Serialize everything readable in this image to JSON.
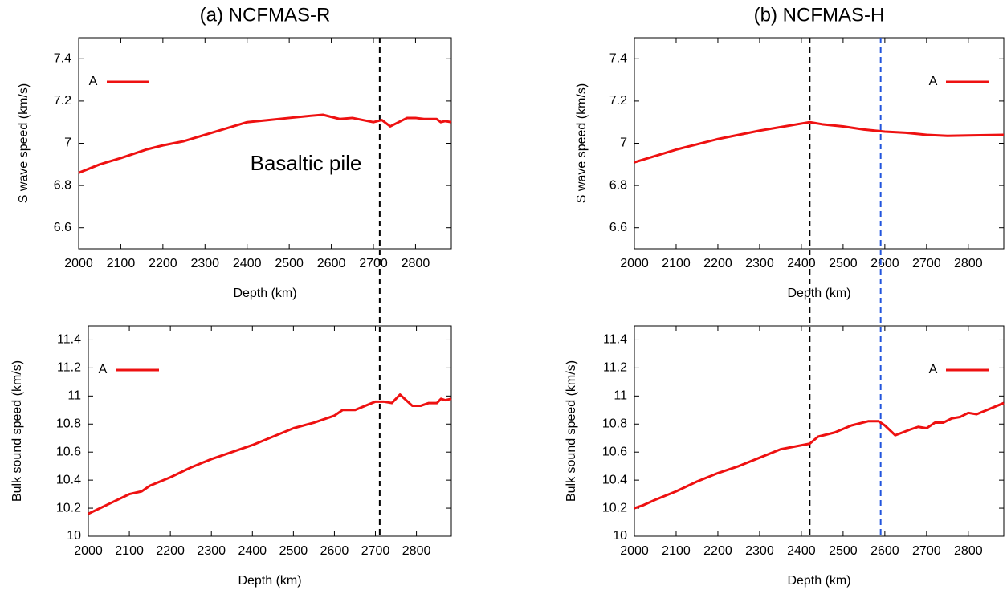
{
  "chart_data": [
    {
      "type": "line",
      "title": "(a) NCFMAS-R",
      "xlabel": "Depth (km)",
      "ylabel": "S wave speed (km/s)",
      "annotation": "Basaltic pile",
      "xlim": [
        2000,
        2885
      ],
      "xticks": [
        2000,
        2100,
        2200,
        2300,
        2400,
        2500,
        2600,
        2700,
        2800
      ],
      "ylim": [
        6.5,
        7.5
      ],
      "yticks": [
        6.6,
        6.8,
        7,
        7.2,
        7.4
      ],
      "legend": "upper left",
      "vlines": [
        {
          "x": 2715,
          "color": "#000000"
        }
      ],
      "x": [
        2000,
        2050,
        2100,
        2130,
        2160,
        2200,
        2250,
        2300,
        2350,
        2400,
        2450,
        2500,
        2550,
        2580,
        2620,
        2650,
        2700,
        2720,
        2740,
        2780,
        2800,
        2820,
        2850,
        2860,
        2870,
        2885
      ],
      "series": [
        {
          "name": "A",
          "color": "#ee1111",
          "values": [
            6.86,
            6.9,
            6.93,
            6.95,
            6.97,
            6.99,
            7.01,
            7.04,
            7.07,
            7.1,
            7.11,
            7.12,
            7.13,
            7.135,
            7.115,
            7.12,
            7.1,
            7.11,
            7.08,
            7.12,
            7.12,
            7.115,
            7.115,
            7.1,
            7.105,
            7.1
          ]
        }
      ]
    },
    {
      "type": "line",
      "xlabel": "Depth (km)",
      "ylabel": "Bulk sound speed (km/s)",
      "xlim": [
        2000,
        2885
      ],
      "xticks": [
        2000,
        2100,
        2200,
        2300,
        2400,
        2500,
        2600,
        2700,
        2800
      ],
      "ylim": [
        10,
        11.5
      ],
      "yticks": [
        10,
        10.2,
        10.4,
        10.6,
        10.8,
        11,
        11.2,
        11.4
      ],
      "legend": "upper left",
      "x": [
        2000,
        2050,
        2100,
        2130,
        2150,
        2200,
        2250,
        2300,
        2350,
        2400,
        2450,
        2500,
        2550,
        2600,
        2620,
        2650,
        2700,
        2720,
        2740,
        2760,
        2790,
        2810,
        2830,
        2850,
        2860,
        2870,
        2885
      ],
      "series": [
        {
          "name": "A",
          "color": "#ee1111",
          "values": [
            10.16,
            10.23,
            10.3,
            10.32,
            10.36,
            10.42,
            10.49,
            10.55,
            10.6,
            10.65,
            10.71,
            10.77,
            10.81,
            10.86,
            10.9,
            10.9,
            10.96,
            10.96,
            10.95,
            11.01,
            10.93,
            10.93,
            10.95,
            10.95,
            10.98,
            10.97,
            10.98
          ]
        }
      ]
    },
    {
      "type": "line",
      "title": "(b) NCFMAS-H",
      "xlabel": "Depth (km)",
      "ylabel": "S wave speed (km/s)",
      "xlim": [
        2000,
        2885
      ],
      "xticks": [
        2000,
        2100,
        2200,
        2300,
        2400,
        2500,
        2600,
        2700,
        2800
      ],
      "ylim": [
        6.5,
        7.5
      ],
      "yticks": [
        6.6,
        6.8,
        7,
        7.2,
        7.4
      ],
      "legend": "upper right",
      "vlines": [
        {
          "x": 2420,
          "color": "#000000"
        },
        {
          "x": 2590,
          "color": "#2255dd"
        }
      ],
      "x": [
        2000,
        2100,
        2200,
        2300,
        2420,
        2450,
        2500,
        2550,
        2600,
        2650,
        2700,
        2750,
        2800,
        2885
      ],
      "series": [
        {
          "name": "A",
          "color": "#ee1111",
          "values": [
            6.91,
            6.97,
            7.02,
            7.06,
            7.1,
            7.09,
            7.08,
            7.065,
            7.055,
            7.05,
            7.04,
            7.035,
            7.037,
            7.04
          ]
        }
      ]
    },
    {
      "type": "line",
      "xlabel": "Depth (km)",
      "ylabel": "Bulk sound speed (km/s)",
      "xlim": [
        2000,
        2885
      ],
      "xticks": [
        2000,
        2100,
        2200,
        2300,
        2400,
        2500,
        2600,
        2700,
        2800
      ],
      "ylim": [
        10,
        11.5
      ],
      "yticks": [
        10,
        10.2,
        10.4,
        10.6,
        10.8,
        11,
        11.2,
        11.4
      ],
      "legend": "upper right",
      "x": [
        2000,
        2020,
        2050,
        2100,
        2150,
        2200,
        2250,
        2300,
        2350,
        2420,
        2440,
        2480,
        2520,
        2560,
        2585,
        2600,
        2625,
        2660,
        2680,
        2700,
        2720,
        2740,
        2760,
        2780,
        2800,
        2820,
        2885
      ],
      "series": [
        {
          "name": "A",
          "color": "#ee1111",
          "values": [
            10.2,
            10.22,
            10.26,
            10.32,
            10.39,
            10.45,
            10.5,
            10.56,
            10.62,
            10.66,
            10.71,
            10.74,
            10.79,
            10.82,
            10.82,
            10.79,
            10.72,
            10.76,
            10.78,
            10.77,
            10.81,
            10.81,
            10.84,
            10.85,
            10.88,
            10.87,
            10.95
          ]
        }
      ]
    }
  ]
}
